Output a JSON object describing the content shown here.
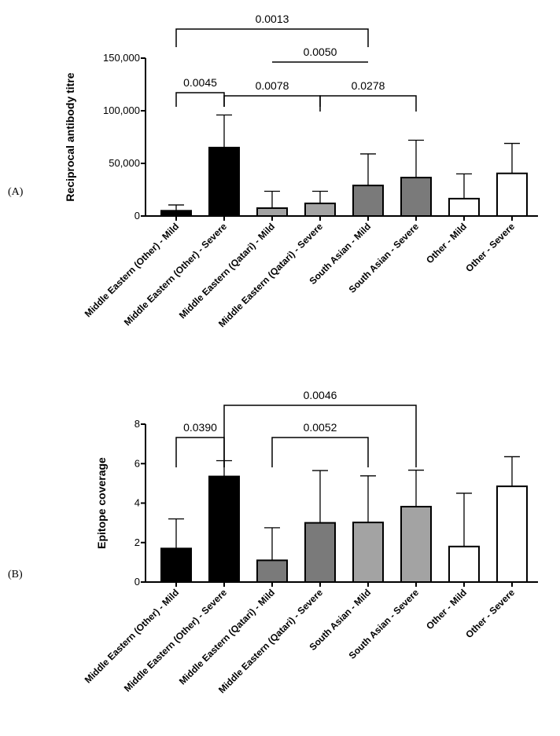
{
  "chart_data": [
    {
      "panel_label": "(A)",
      "type": "bar",
      "ylabel": "Reciprocal antibody titre",
      "ylim": [
        0,
        150000
      ],
      "yticks": [
        "0",
        "50,000",
        "100,000",
        "150,000"
      ],
      "categories": [
        "Middle Eastern (Other) - Mild",
        "Middle Eastern (Other) - Severe",
        "Middle Eastern (Qatari) - Mild",
        "Middle Eastern (Qatari) - Severe",
        "South Asian - Mild",
        "South Asian - Severe",
        "Other - Mild",
        "Other - Severe"
      ],
      "values": [
        5000,
        65000,
        7500,
        12000,
        29000,
        36500,
        16500,
        40500
      ],
      "error_upper": [
        10500,
        96000,
        23500,
        23500,
        59000,
        72000,
        40000,
        69000
      ],
      "bar_colors": [
        "#000000",
        "#000000",
        "#a3a3a3",
        "#a3a3a3",
        "#7a7a7a",
        "#7a7a7a",
        "#ffffff",
        "#ffffff"
      ],
      "comparisons": [
        {
          "from": 0,
          "to": 4,
          "p": "0.0013"
        },
        {
          "from": 2,
          "to": 4,
          "p": "0.0050"
        },
        {
          "from": 0,
          "to": 1,
          "p": "0.0045"
        },
        {
          "from": 1,
          "to": 3,
          "p": "0.0078"
        },
        {
          "from": 3,
          "to": 5,
          "p": "0.0278"
        }
      ]
    },
    {
      "panel_label": "(B)",
      "type": "bar",
      "ylabel": "Epitope coverage",
      "ylim": [
        0,
        8
      ],
      "yticks": [
        "0",
        "2",
        "4",
        "6",
        "8"
      ],
      "categories": [
        "Middle Eastern (Other) - Mild",
        "Middle Eastern (Other) - Severe",
        "Middle Eastern (Qatari) - Mild",
        "Middle Eastern (Qatari) - Severe",
        "South Asian - Mild",
        "South Asian - Severe",
        "Other - Mild",
        "Other - Severe"
      ],
      "values": [
        1.7,
        5.35,
        1.1,
        3.0,
        3.02,
        3.82,
        1.8,
        4.85
      ],
      "error_upper": [
        3.2,
        6.15,
        2.75,
        5.65,
        5.38,
        5.67,
        4.5,
        6.35
      ],
      "bar_colors": [
        "#000000",
        "#000000",
        "#7a7a7a",
        "#7a7a7a",
        "#a3a3a3",
        "#a3a3a3",
        "#ffffff",
        "#ffffff"
      ],
      "comparisons": [
        {
          "from": 1,
          "to": 5,
          "p": "0.0046"
        },
        {
          "from": 0,
          "to": 1,
          "p": "0.0390"
        },
        {
          "from": 2,
          "to": 4,
          "p": "0.0052"
        }
      ]
    }
  ]
}
